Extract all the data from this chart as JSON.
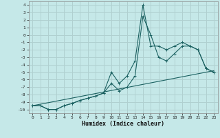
{
  "xlabel": "Humidex (Indice chaleur)",
  "background_color": "#c5e8e8",
  "grid_color": "#b0d0d0",
  "line_color": "#1a6060",
  "xlim": [
    -0.5,
    23.5
  ],
  "ylim": [
    -10.5,
    4.5
  ],
  "xticks": [
    0,
    1,
    2,
    3,
    4,
    5,
    6,
    7,
    8,
    9,
    10,
    11,
    12,
    13,
    14,
    15,
    16,
    17,
    18,
    19,
    20,
    21,
    22,
    23
  ],
  "yticks": [
    4,
    3,
    2,
    1,
    0,
    -1,
    -2,
    -3,
    -4,
    -5,
    -6,
    -7,
    -8,
    -9,
    -10
  ],
  "line1_x": [
    0,
    1,
    2,
    3,
    4,
    5,
    6,
    7,
    8,
    9,
    10,
    11,
    12,
    13,
    14,
    15,
    16,
    17,
    18,
    19,
    20,
    21,
    22,
    23
  ],
  "line1_y": [
    -9.5,
    -9.5,
    -10,
    -10,
    -9.5,
    -9.2,
    -8.8,
    -8.5,
    -8.2,
    -7.8,
    -5.0,
    -6.5,
    -5.5,
    -3.5,
    4.0,
    -1.5,
    -1.5,
    -2.0,
    -1.5,
    -1.0,
    -1.5,
    -2.0,
    -4.5,
    -5.0
  ],
  "line2_x": [
    0,
    1,
    2,
    3,
    4,
    5,
    6,
    7,
    8,
    9,
    10,
    11,
    12,
    13,
    14,
    15,
    16,
    17,
    18,
    19,
    20,
    21,
    22,
    23
  ],
  "line2_y": [
    -9.5,
    -9.5,
    -10,
    -10,
    -9.5,
    -9.2,
    -8.8,
    -8.5,
    -8.2,
    -7.8,
    -6.5,
    -7.5,
    -7.0,
    -5.5,
    2.5,
    0.0,
    -3.0,
    -3.5,
    -2.5,
    -1.5,
    -1.5,
    -2.0,
    -4.5,
    -5.0
  ],
  "line3_x": [
    0,
    23
  ],
  "line3_y": [
    -9.5,
    -4.8
  ]
}
